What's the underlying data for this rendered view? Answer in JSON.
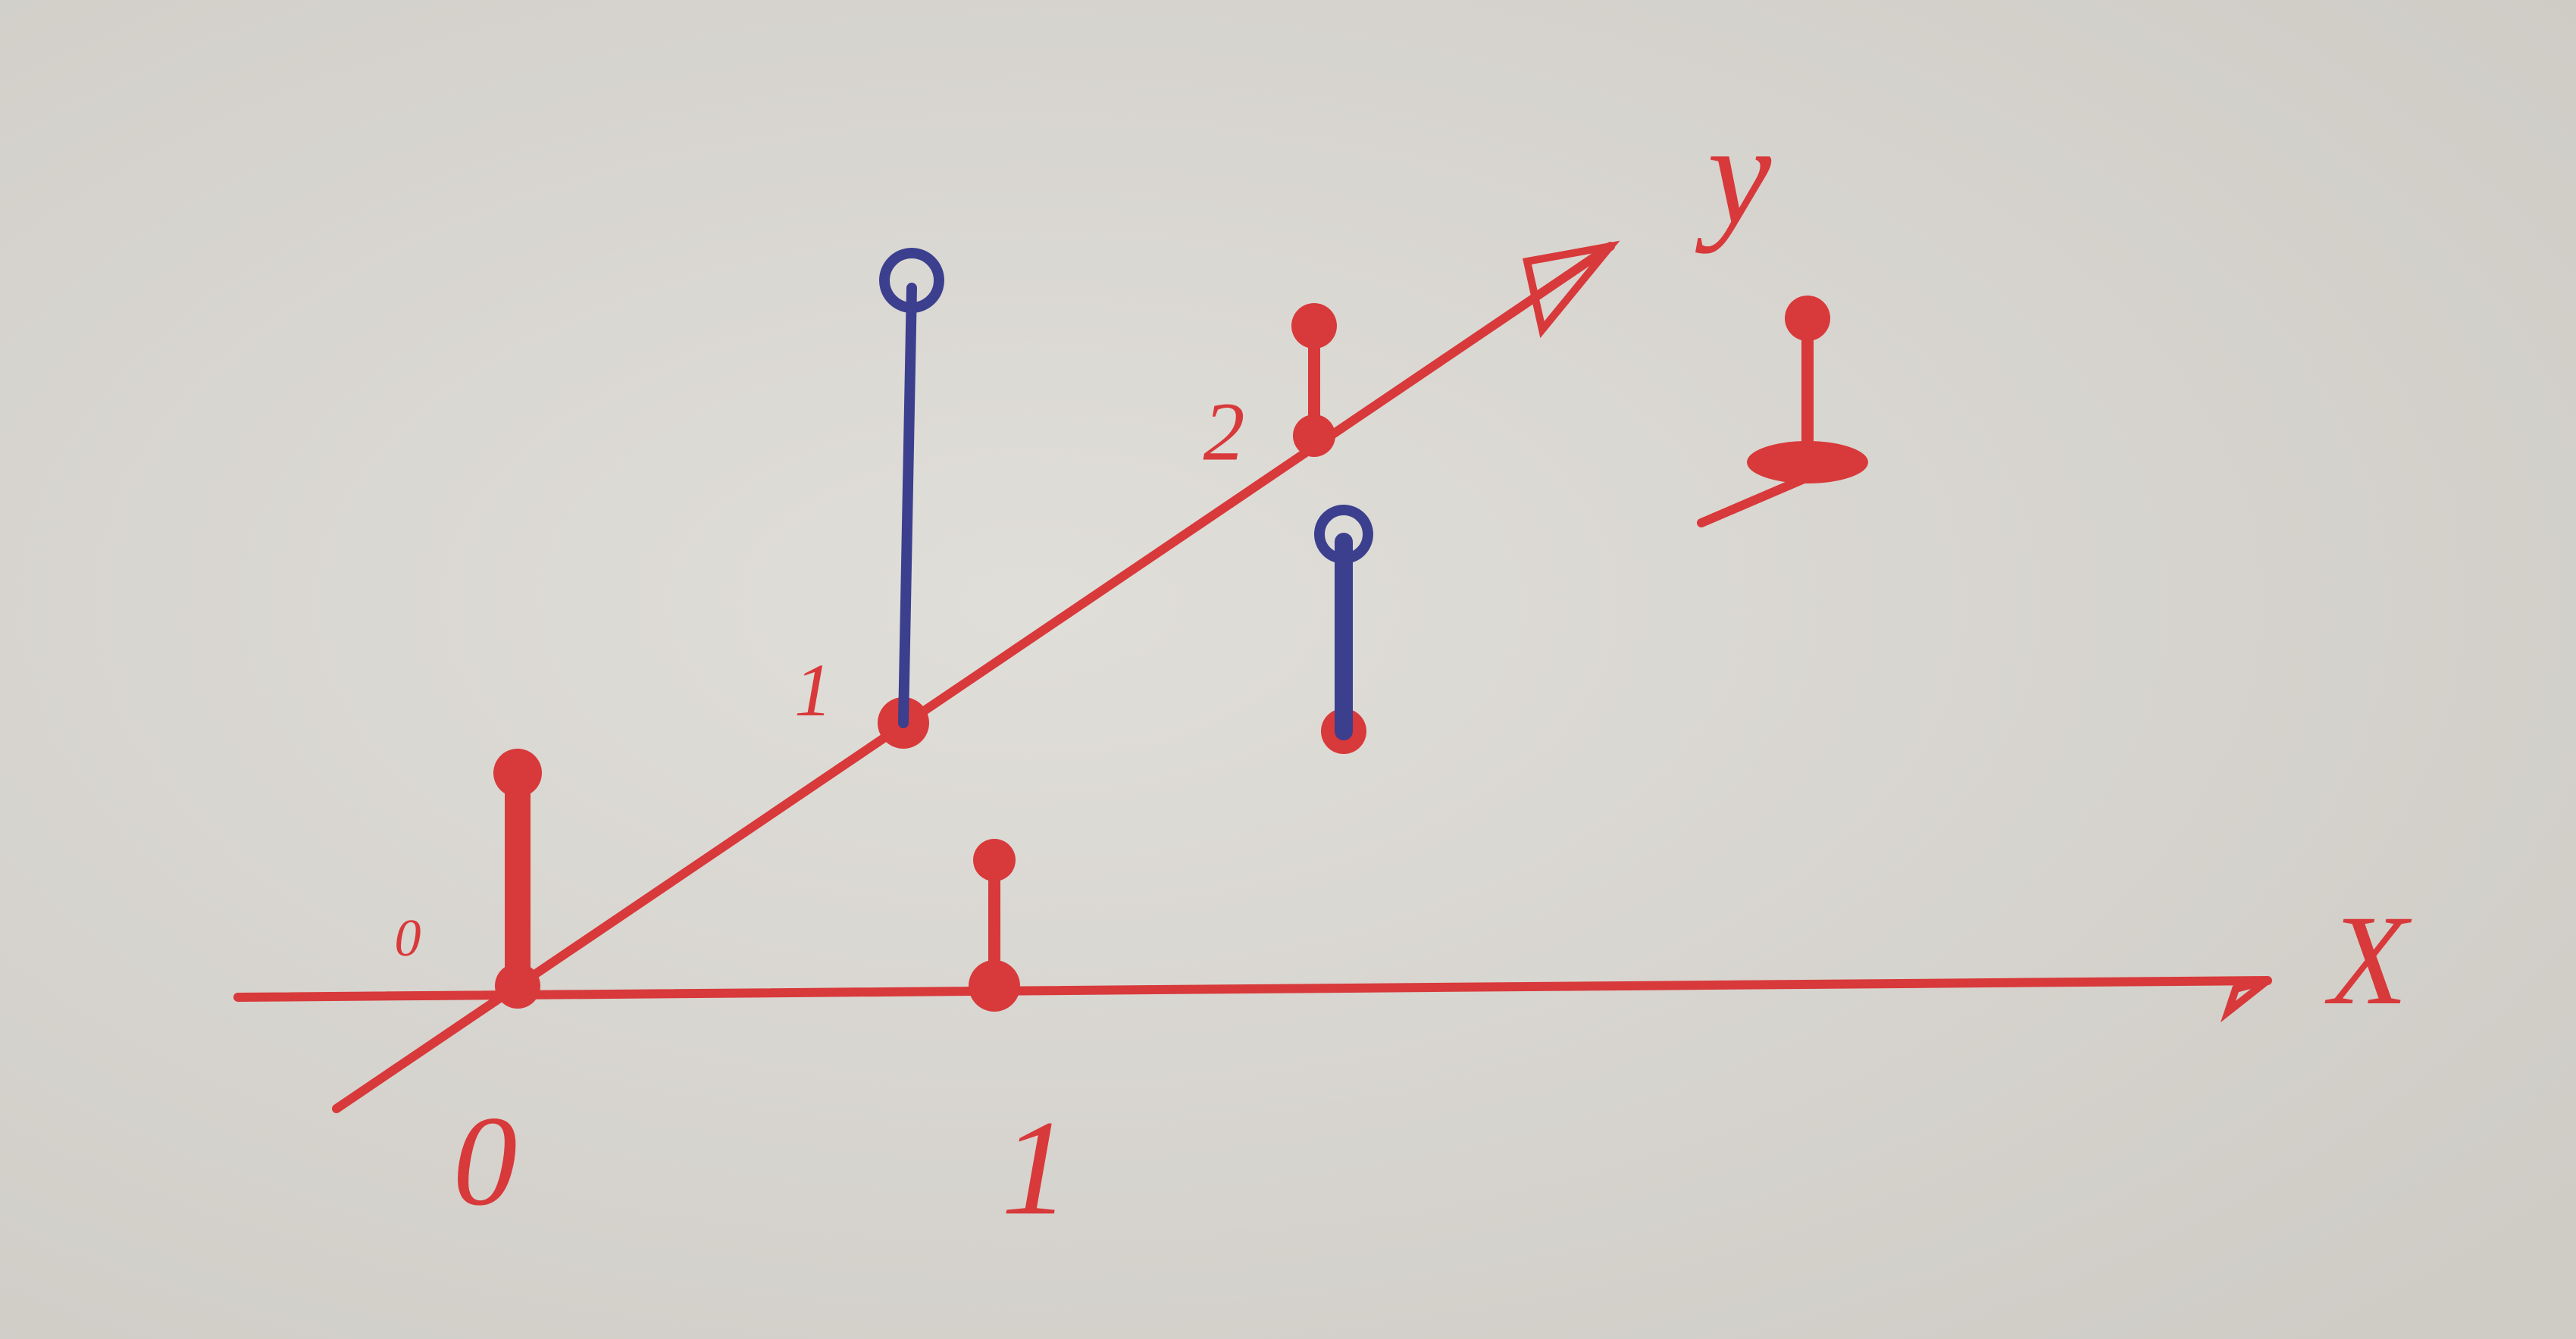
{
  "axes": {
    "x": {
      "label": "X",
      "ticks": [
        "0",
        "1"
      ]
    },
    "y": {
      "label": "y",
      "ticks": [
        "0",
        "1",
        "2"
      ]
    }
  }
}
